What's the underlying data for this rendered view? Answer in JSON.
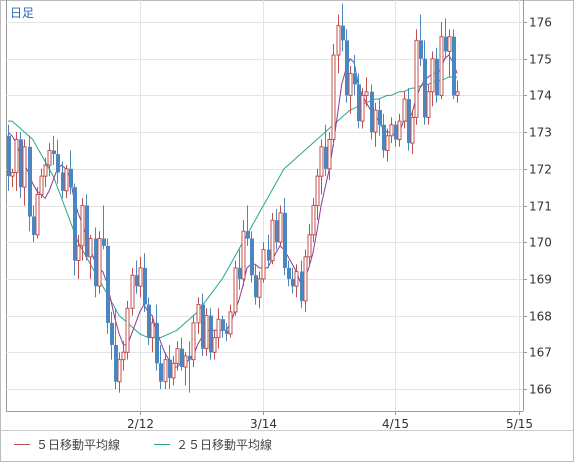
{
  "period_label": "日足",
  "legend": {
    "ma5_label": "５日移動平均線",
    "ma25_label": "２５日移動平均線"
  },
  "colors": {
    "up_candle": "#c0504d",
    "down_candle": "#4a86c0",
    "ma5": "#8e3a8f",
    "ma25": "#2aa58a",
    "grid": "#e4e4e4",
    "frame": "#999999"
  },
  "chart_data": {
    "type": "candlestick",
    "y_tick_labels": [
      "166",
      "167",
      "168",
      "169",
      "170",
      "171",
      "172",
      "173",
      "174",
      "175",
      "176"
    ],
    "ylim": [
      165.4,
      176.6
    ],
    "x_tick_labels": [
      {
        "label": "2/12",
        "index": 32
      },
      {
        "label": "3/14",
        "index": 62
      },
      {
        "label": "4/15",
        "index": 94
      },
      {
        "label": "5/15",
        "index": 124
      }
    ],
    "grid": true,
    "ohlc": [
      [
        172.9,
        173.2,
        171.4,
        171.8
      ],
      [
        171.8,
        172.0,
        171.5,
        171.9
      ],
      [
        171.9,
        173.0,
        171.4,
        172.8
      ],
      [
        172.8,
        173.0,
        171.2,
        171.5
      ],
      [
        171.5,
        172.8,
        171.0,
        172.6
      ],
      [
        172.6,
        172.9,
        170.3,
        170.7
      ],
      [
        170.7,
        171.0,
        170.0,
        170.2
      ],
      [
        170.2,
        171.5,
        170.1,
        171.3
      ],
      [
        171.3,
        172.0,
        171.2,
        171.8
      ],
      [
        171.8,
        172.3,
        171.5,
        172.1
      ],
      [
        172.1,
        172.7,
        171.8,
        172.5
      ],
      [
        172.5,
        172.9,
        172.1,
        172.4
      ],
      [
        172.4,
        172.8,
        171.6,
        171.9
      ],
      [
        171.9,
        172.2,
        171.2,
        171.4
      ],
      [
        171.4,
        172.1,
        171.2,
        172.0
      ],
      [
        172.0,
        172.5,
        171.3,
        171.5
      ],
      [
        171.5,
        171.6,
        169.1,
        169.5
      ],
      [
        169.5,
        170.2,
        169.0,
        169.9
      ],
      [
        169.9,
        171.2,
        169.5,
        171.0
      ],
      [
        171.0,
        171.3,
        169.5,
        169.6
      ],
      [
        169.6,
        170.2,
        169.0,
        170.1
      ],
      [
        170.1,
        170.4,
        168.5,
        168.8
      ],
      [
        168.8,
        170.3,
        168.6,
        170.1
      ],
      [
        170.1,
        171.0,
        169.8,
        169.9
      ],
      [
        169.9,
        170.1,
        167.5,
        167.8
      ],
      [
        167.8,
        168.1,
        166.8,
        167.2
      ],
      [
        167.2,
        168.2,
        166.0,
        166.2
      ],
      [
        166.2,
        167.0,
        165.9,
        166.8
      ],
      [
        166.8,
        167.3,
        166.5,
        167.0
      ],
      [
        167.0,
        168.4,
        166.8,
        168.2
      ],
      [
        168.2,
        169.3,
        168.0,
        169.1
      ],
      [
        169.1,
        169.5,
        168.6,
        168.8
      ],
      [
        168.8,
        169.6,
        168.5,
        169.3
      ],
      [
        169.3,
        169.7,
        168.1,
        168.3
      ],
      [
        168.3,
        168.5,
        167.2,
        167.4
      ],
      [
        167.4,
        168.0,
        167.0,
        167.8
      ],
      [
        167.8,
        168.3,
        166.5,
        166.7
      ],
      [
        166.7,
        167.2,
        166.0,
        166.2
      ],
      [
        166.2,
        167.0,
        166.0,
        166.8
      ],
      [
        166.8,
        167.2,
        166.0,
        166.3
      ],
      [
        166.3,
        166.9,
        166.1,
        166.7
      ],
      [
        166.7,
        167.3,
        166.5,
        167.1
      ],
      [
        167.1,
        167.4,
        166.5,
        166.6
      ],
      [
        166.6,
        167.0,
        166.1,
        166.9
      ],
      [
        166.9,
        167.3,
        165.9,
        166.8
      ],
      [
        166.8,
        168.0,
        166.6,
        167.8
      ],
      [
        167.8,
        168.5,
        167.5,
        168.3
      ],
      [
        168.3,
        168.6,
        166.9,
        167.1
      ],
      [
        167.1,
        168.2,
        166.9,
        168.0
      ],
      [
        168.0,
        168.2,
        166.8,
        167.0
      ],
      [
        167.0,
        167.6,
        166.8,
        167.4
      ],
      [
        167.4,
        168.2,
        167.1,
        167.9
      ],
      [
        167.9,
        168.0,
        167.4,
        167.6
      ],
      [
        167.6,
        167.8,
        167.3,
        167.5
      ],
      [
        167.5,
        168.3,
        167.4,
        168.1
      ],
      [
        168.1,
        169.5,
        168.0,
        169.3
      ],
      [
        169.3,
        169.8,
        168.7,
        169.0
      ],
      [
        169.0,
        170.6,
        168.8,
        170.3
      ],
      [
        170.3,
        171.0,
        169.9,
        170.1
      ],
      [
        170.1,
        170.3,
        168.9,
        169.1
      ],
      [
        169.1,
        169.4,
        168.3,
        168.5
      ],
      [
        168.5,
        169.2,
        168.2,
        169.0
      ],
      [
        169.0,
        170.0,
        168.9,
        169.8
      ],
      [
        169.8,
        170.2,
        169.3,
        169.5
      ],
      [
        169.5,
        170.8,
        169.4,
        170.6
      ],
      [
        170.6,
        170.9,
        169.8,
        170.0
      ],
      [
        170.0,
        171.0,
        169.9,
        170.8
      ],
      [
        170.8,
        171.2,
        169.1,
        169.3
      ],
      [
        169.3,
        169.5,
        168.8,
        169.0
      ],
      [
        169.0,
        169.3,
        168.6,
        168.8
      ],
      [
        168.8,
        169.4,
        168.5,
        169.2
      ],
      [
        169.2,
        169.5,
        168.2,
        168.4
      ],
      [
        168.4,
        169.8,
        168.1,
        169.6
      ],
      [
        169.6,
        170.5,
        169.4,
        170.2
      ],
      [
        170.2,
        171.2,
        170.0,
        171.0
      ],
      [
        171.0,
        172.0,
        170.6,
        171.8
      ],
      [
        171.8,
        172.8,
        171.3,
        172.6
      ],
      [
        172.6,
        173.2,
        171.8,
        172.0
      ],
      [
        172.0,
        173.0,
        171.7,
        172.8
      ],
      [
        172.8,
        175.4,
        172.6,
        175.1
      ],
      [
        175.1,
        176.2,
        174.6,
        175.9
      ],
      [
        175.9,
        176.5,
        175.2,
        175.5
      ],
      [
        175.5,
        175.8,
        173.8,
        174.0
      ],
      [
        174.0,
        174.8,
        173.5,
        174.6
      ],
      [
        174.6,
        175.1,
        174.0,
        174.3
      ],
      [
        174.3,
        174.6,
        173.1,
        173.3
      ],
      [
        173.3,
        174.2,
        173.1,
        174.0
      ],
      [
        174.0,
        174.5,
        173.7,
        174.1
      ],
      [
        174.1,
        174.3,
        172.8,
        173.0
      ],
      [
        173.0,
        173.8,
        172.6,
        173.6
      ],
      [
        173.6,
        173.9,
        172.9,
        173.2
      ],
      [
        173.2,
        173.5,
        172.3,
        172.5
      ],
      [
        172.5,
        173.1,
        172.2,
        172.9
      ],
      [
        172.9,
        173.4,
        172.7,
        173.2
      ],
      [
        173.2,
        173.3,
        172.6,
        172.8
      ],
      [
        172.8,
        173.5,
        172.6,
        173.3
      ],
      [
        173.3,
        174.1,
        173.1,
        173.9
      ],
      [
        173.9,
        174.2,
        172.5,
        172.7
      ],
      [
        172.7,
        173.6,
        172.4,
        173.4
      ],
      [
        173.4,
        175.8,
        173.2,
        175.5
      ],
      [
        175.5,
        176.2,
        174.8,
        175.0
      ],
      [
        175.0,
        175.5,
        173.2,
        173.4
      ],
      [
        173.4,
        174.3,
        173.2,
        174.1
      ],
      [
        174.1,
        175.2,
        173.7,
        175.0
      ],
      [
        175.0,
        175.3,
        173.8,
        174.0
      ],
      [
        174.0,
        176.0,
        173.9,
        175.6
      ],
      [
        175.6,
        176.1,
        175.0,
        175.2
      ],
      [
        175.2,
        175.8,
        174.5,
        175.6
      ],
      [
        175.6,
        175.8,
        173.9,
        174.0
      ],
      [
        174.0,
        174.4,
        173.8,
        174.1
      ]
    ],
    "ma5": [
      173.0,
      172.9,
      172.7,
      172.4,
      172.1,
      171.9,
      171.6,
      171.4,
      171.3,
      171.2,
      171.4,
      171.7,
      172.0,
      172.1,
      172.0,
      171.8,
      171.2,
      170.8,
      170.5,
      170.2,
      169.8,
      169.5,
      169.3,
      169.2,
      168.9,
      168.4,
      167.9,
      167.5,
      167.2,
      167.2,
      167.5,
      167.8,
      168.1,
      168.3,
      168.1,
      168.0,
      167.6,
      167.3,
      167.0,
      166.8,
      166.6,
      166.6,
      166.7,
      166.7,
      166.8,
      166.9,
      167.2,
      167.4,
      167.6,
      167.6,
      167.6,
      167.6,
      167.6,
      167.6,
      167.8,
      168.1,
      168.4,
      168.8,
      169.3,
      169.4,
      169.4,
      169.3,
      169.3,
      169.3,
      169.5,
      169.7,
      169.9,
      169.8,
      169.6,
      169.4,
      169.2,
      168.9,
      169.0,
      169.3,
      169.7,
      170.3,
      171.0,
      171.5,
      172.0,
      172.7,
      173.5,
      174.3,
      174.7,
      175.0,
      174.9,
      174.3,
      174.0,
      173.8,
      173.6,
      173.5,
      173.3,
      173.1,
      173.0,
      173.0,
      172.9,
      173.0,
      173.3,
      173.3,
      173.5,
      173.9,
      174.2,
      174.4,
      174.5,
      174.6,
      174.6,
      174.7,
      175.0,
      175.1,
      174.9,
      174.6
    ],
    "ma25": [
      173.3,
      173.3,
      173.2,
      173.1,
      173.0,
      172.9,
      172.8,
      172.6,
      172.4,
      172.2,
      172.0,
      171.8,
      171.5,
      171.2,
      170.9,
      170.6,
      170.3,
      170.0,
      169.8,
      169.6,
      169.4,
      169.2,
      169.0,
      168.8,
      168.6,
      168.4,
      168.2,
      168.0,
      167.9,
      167.8,
      167.7,
      167.6,
      167.5,
      167.45,
      167.4,
      167.4,
      167.4,
      167.4,
      167.45,
      167.5,
      167.55,
      167.6,
      167.7,
      167.8,
      167.9,
      168.0,
      168.1,
      168.25,
      168.4,
      168.55,
      168.7,
      168.85,
      169.0,
      169.2,
      169.4,
      169.6,
      169.8,
      170.0,
      170.2,
      170.4,
      170.6,
      170.8,
      171.0,
      171.2,
      171.4,
      171.6,
      171.8,
      172.0,
      172.1,
      172.2,
      172.3,
      172.4,
      172.5,
      172.6,
      172.7,
      172.8,
      172.9,
      173.0,
      173.1,
      173.2,
      173.3,
      173.4,
      173.5,
      173.6,
      173.65,
      173.7,
      173.75,
      173.8,
      173.85,
      173.9,
      173.9,
      173.95,
      174.0,
      174.0,
      174.05,
      174.1,
      174.1,
      174.15,
      174.2,
      174.2,
      174.25,
      174.3,
      174.3,
      174.35,
      174.4,
      174.4,
      174.45,
      174.5,
      174.5,
      174.5
    ]
  }
}
